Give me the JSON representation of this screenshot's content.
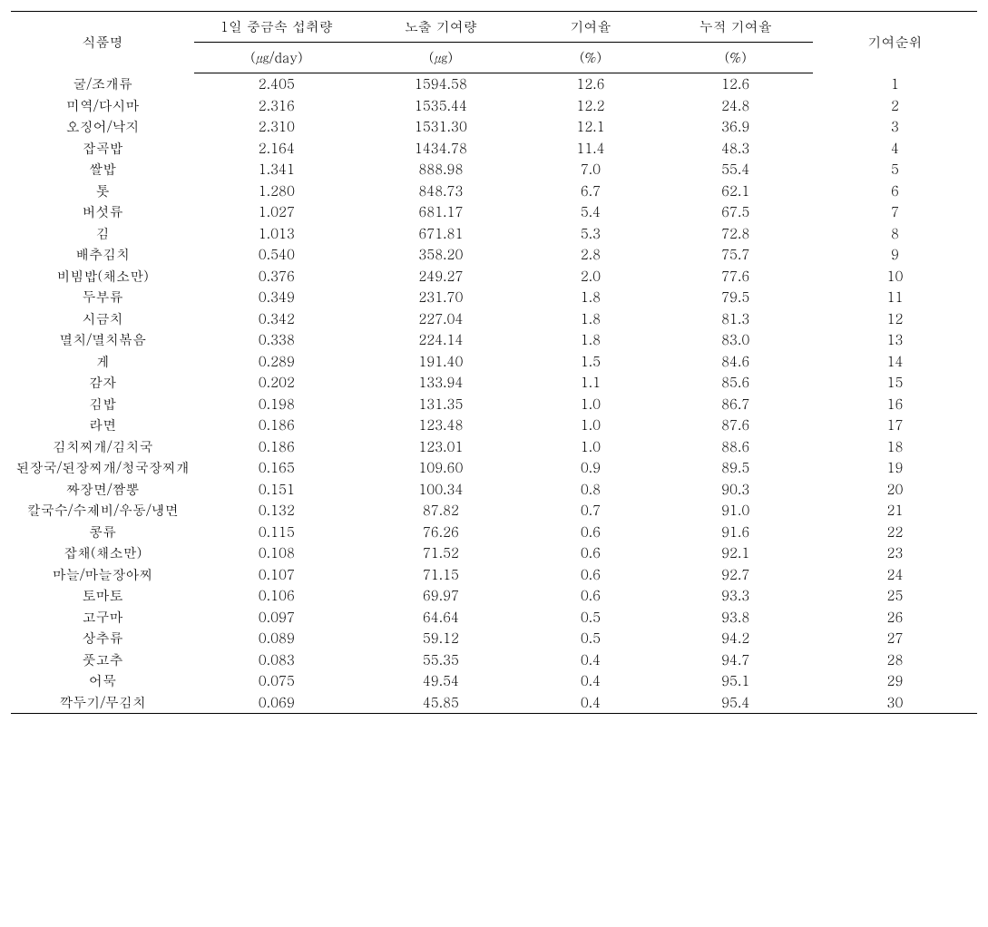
{
  "table": {
    "type": "table",
    "background_color": "#ffffff",
    "text_color": "#000000",
    "border_color": "#000000",
    "font_size_pt": 11,
    "columns": [
      {
        "key": "food",
        "label": "식품명",
        "width_pct": 19
      },
      {
        "key": "intake",
        "label": "1일 중금속 섭취량",
        "unit": "(㎍/day)",
        "width_pct": 17
      },
      {
        "key": "exposure",
        "label": "노출 기여량",
        "unit": "(㎍)",
        "width_pct": 17
      },
      {
        "key": "rate",
        "label": "기여율",
        "unit": "(%)",
        "width_pct": 14
      },
      {
        "key": "cumulative",
        "label": "누적 기여율",
        "unit": "(%)",
        "width_pct": 16
      },
      {
        "key": "rank",
        "label": "기여순위",
        "width_pct": 17
      }
    ],
    "rows": [
      {
        "food": "굴/조개류",
        "intake": "2.405",
        "exposure": "1594.58",
        "rate": "12.6",
        "cumulative": "12.6",
        "rank": "1"
      },
      {
        "food": "미역/다시마",
        "intake": "2.316",
        "exposure": "1535.44",
        "rate": "12.2",
        "cumulative": "24.8",
        "rank": "2"
      },
      {
        "food": "오징어/낙지",
        "intake": "2.310",
        "exposure": "1531.30",
        "rate": "12.1",
        "cumulative": "36.9",
        "rank": "3"
      },
      {
        "food": "잡곡밥",
        "intake": "2.164",
        "exposure": "1434.78",
        "rate": "11.4",
        "cumulative": "48.3",
        "rank": "4"
      },
      {
        "food": "쌀밥",
        "intake": "1.341",
        "exposure": "888.98",
        "rate": "7.0",
        "cumulative": "55.4",
        "rank": "5"
      },
      {
        "food": "톳",
        "intake": "1.280",
        "exposure": "848.73",
        "rate": "6.7",
        "cumulative": "62.1",
        "rank": "6"
      },
      {
        "food": "버섯류",
        "intake": "1.027",
        "exposure": "681.17",
        "rate": "5.4",
        "cumulative": "67.5",
        "rank": "7"
      },
      {
        "food": "김",
        "intake": "1.013",
        "exposure": "671.81",
        "rate": "5.3",
        "cumulative": "72.8",
        "rank": "8"
      },
      {
        "food": "배추김치",
        "intake": "0.540",
        "exposure": "358.20",
        "rate": "2.8",
        "cumulative": "75.7",
        "rank": "9"
      },
      {
        "food": "비빔밥(채소만)",
        "intake": "0.376",
        "exposure": "249.27",
        "rate": "2.0",
        "cumulative": "77.6",
        "rank": "10"
      },
      {
        "food": "두부류",
        "intake": "0.349",
        "exposure": "231.70",
        "rate": "1.8",
        "cumulative": "79.5",
        "rank": "11"
      },
      {
        "food": "시금치",
        "intake": "0.342",
        "exposure": "227.04",
        "rate": "1.8",
        "cumulative": "81.3",
        "rank": "12"
      },
      {
        "food": "멸치/멸치볶음",
        "intake": "0.338",
        "exposure": "224.14",
        "rate": "1.8",
        "cumulative": "83.0",
        "rank": "13"
      },
      {
        "food": "게",
        "intake": "0.289",
        "exposure": "191.40",
        "rate": "1.5",
        "cumulative": "84.6",
        "rank": "14"
      },
      {
        "food": "감자",
        "intake": "0.202",
        "exposure": "133.94",
        "rate": "1.1",
        "cumulative": "85.6",
        "rank": "15"
      },
      {
        "food": "김밥",
        "intake": "0.198",
        "exposure": "131.35",
        "rate": "1.0",
        "cumulative": "86.7",
        "rank": "16"
      },
      {
        "food": "라면",
        "intake": "0.186",
        "exposure": "123.48",
        "rate": "1.0",
        "cumulative": "87.6",
        "rank": "17"
      },
      {
        "food": "김치찌개/김치국",
        "intake": "0.186",
        "exposure": "123.01",
        "rate": "1.0",
        "cumulative": "88.6",
        "rank": "18"
      },
      {
        "food": "된장국/된장찌개/청국장찌개",
        "intake": "0.165",
        "exposure": "109.60",
        "rate": "0.9",
        "cumulative": "89.5",
        "rank": "19",
        "wrap": true
      },
      {
        "food": "짜장면/짬뽕",
        "intake": "0.151",
        "exposure": "100.34",
        "rate": "0.8",
        "cumulative": "90.3",
        "rank": "20"
      },
      {
        "food": "칼국수/수제비/우동/냉면",
        "intake": "0.132",
        "exposure": "87.82",
        "rate": "0.7",
        "cumulative": "91.0",
        "rank": "21",
        "wrap": true
      },
      {
        "food": "콩류",
        "intake": "0.115",
        "exposure": "76.26",
        "rate": "0.6",
        "cumulative": "91.6",
        "rank": "22"
      },
      {
        "food": "잡채(채소만)",
        "intake": "0.108",
        "exposure": "71.52",
        "rate": "0.6",
        "cumulative": "92.1",
        "rank": "23"
      },
      {
        "food": "마늘/마늘장아찌",
        "intake": "0.107",
        "exposure": "71.15",
        "rate": "0.6",
        "cumulative": "92.7",
        "rank": "24"
      },
      {
        "food": "토마토",
        "intake": "0.106",
        "exposure": "69.97",
        "rate": "0.6",
        "cumulative": "93.3",
        "rank": "25"
      },
      {
        "food": "고구마",
        "intake": "0.097",
        "exposure": "64.64",
        "rate": "0.5",
        "cumulative": "93.8",
        "rank": "26"
      },
      {
        "food": "상추류",
        "intake": "0.089",
        "exposure": "59.12",
        "rate": "0.5",
        "cumulative": "94.2",
        "rank": "27"
      },
      {
        "food": "풋고추",
        "intake": "0.083",
        "exposure": "55.35",
        "rate": "0.4",
        "cumulative": "94.7",
        "rank": "28"
      },
      {
        "food": "어묵",
        "intake": "0.075",
        "exposure": "49.54",
        "rate": "0.4",
        "cumulative": "95.1",
        "rank": "29"
      },
      {
        "food": "깍두기/무김치",
        "intake": "0.069",
        "exposure": "45.85",
        "rate": "0.4",
        "cumulative": "95.4",
        "rank": "30"
      }
    ]
  }
}
